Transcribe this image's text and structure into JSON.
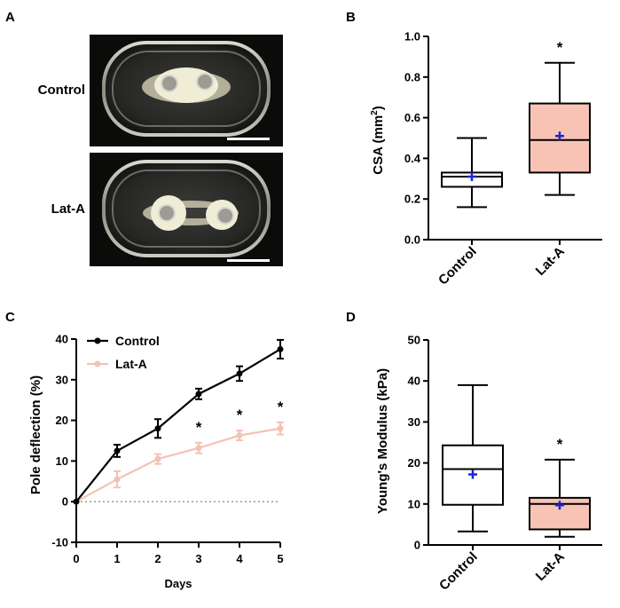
{
  "panels": {
    "A": {
      "label": "A",
      "rows": [
        {
          "label": "Control"
        },
        {
          "label": "Lat-A"
        }
      ]
    },
    "B": {
      "label": "B"
    },
    "C": {
      "label": "C"
    },
    "D": {
      "label": "D"
    }
  },
  "colors": {
    "control": "#000000",
    "latA": "#f3c2b5",
    "latA_box": "#f8c3b5",
    "mean_marker": "#1a24d6"
  },
  "chart_data": [
    {
      "id": "B",
      "type": "box",
      "ylabel": "CSA (mm",
      "ylabel_sup": "2",
      "ylabel_close": ")",
      "ylim": [
        0,
        1.0
      ],
      "yticks": [
        "0.0",
        "0.2",
        "0.4",
        "0.6",
        "0.8",
        "1.0"
      ],
      "categories": [
        "Control",
        "Lat-A"
      ],
      "boxes": [
        {
          "name": "Control",
          "min": 0.16,
          "q1": 0.26,
          "median": 0.31,
          "q3": 0.33,
          "max": 0.5,
          "mean": 0.31,
          "fill": "#ffffff",
          "star": ""
        },
        {
          "name": "Lat-A",
          "min": 0.22,
          "q1": 0.33,
          "median": 0.49,
          "q3": 0.67,
          "max": 0.87,
          "mean": 0.51,
          "fill": "#f8c3b5",
          "star": "*"
        }
      ]
    },
    {
      "id": "C",
      "type": "line",
      "xlabel": "Days",
      "ylabel": "Pole deflection (%)",
      "x": [
        0,
        1,
        2,
        3,
        4,
        5
      ],
      "xticks": [
        "0",
        "1",
        "2",
        "3",
        "4",
        "5"
      ],
      "ylim": [
        -10,
        40
      ],
      "yticks": [
        "-10",
        "0",
        "10",
        "20",
        "30",
        "40"
      ],
      "reference_line_y": 0,
      "series": [
        {
          "name": "Control",
          "values": [
            0,
            12.5,
            18,
            26.5,
            31.5,
            37.5
          ],
          "errors": [
            0,
            1.5,
            2.3,
            1.3,
            1.8,
            2.3
          ]
        },
        {
          "name": "Lat-A",
          "values": [
            0,
            5.5,
            10.5,
            13.2,
            16.3,
            18
          ],
          "errors": [
            0,
            2,
            1.2,
            1.3,
            1.2,
            1.5
          ]
        }
      ],
      "significance": [
        {
          "x": 3,
          "label": "*"
        },
        {
          "x": 4,
          "label": "*"
        },
        {
          "x": 5,
          "label": "*"
        }
      ]
    },
    {
      "id": "D",
      "type": "box",
      "ylabel": "Young's Modulus (kPa)",
      "ylim": [
        0,
        50
      ],
      "yticks": [
        "0",
        "10",
        "20",
        "30",
        "40",
        "50"
      ],
      "categories": [
        "Control",
        "Lat-A"
      ],
      "boxes": [
        {
          "name": "Control",
          "min": 3.3,
          "q1": 9.8,
          "median": 18.5,
          "q3": 24.3,
          "max": 39,
          "mean": 17.2,
          "fill": "#ffffff",
          "star": ""
        },
        {
          "name": "Lat-A",
          "min": 2,
          "q1": 3.8,
          "median": 10,
          "q3": 11.5,
          "max": 20.8,
          "mean": 9.7,
          "fill": "#f8c3b5",
          "star": "*"
        }
      ]
    }
  ]
}
